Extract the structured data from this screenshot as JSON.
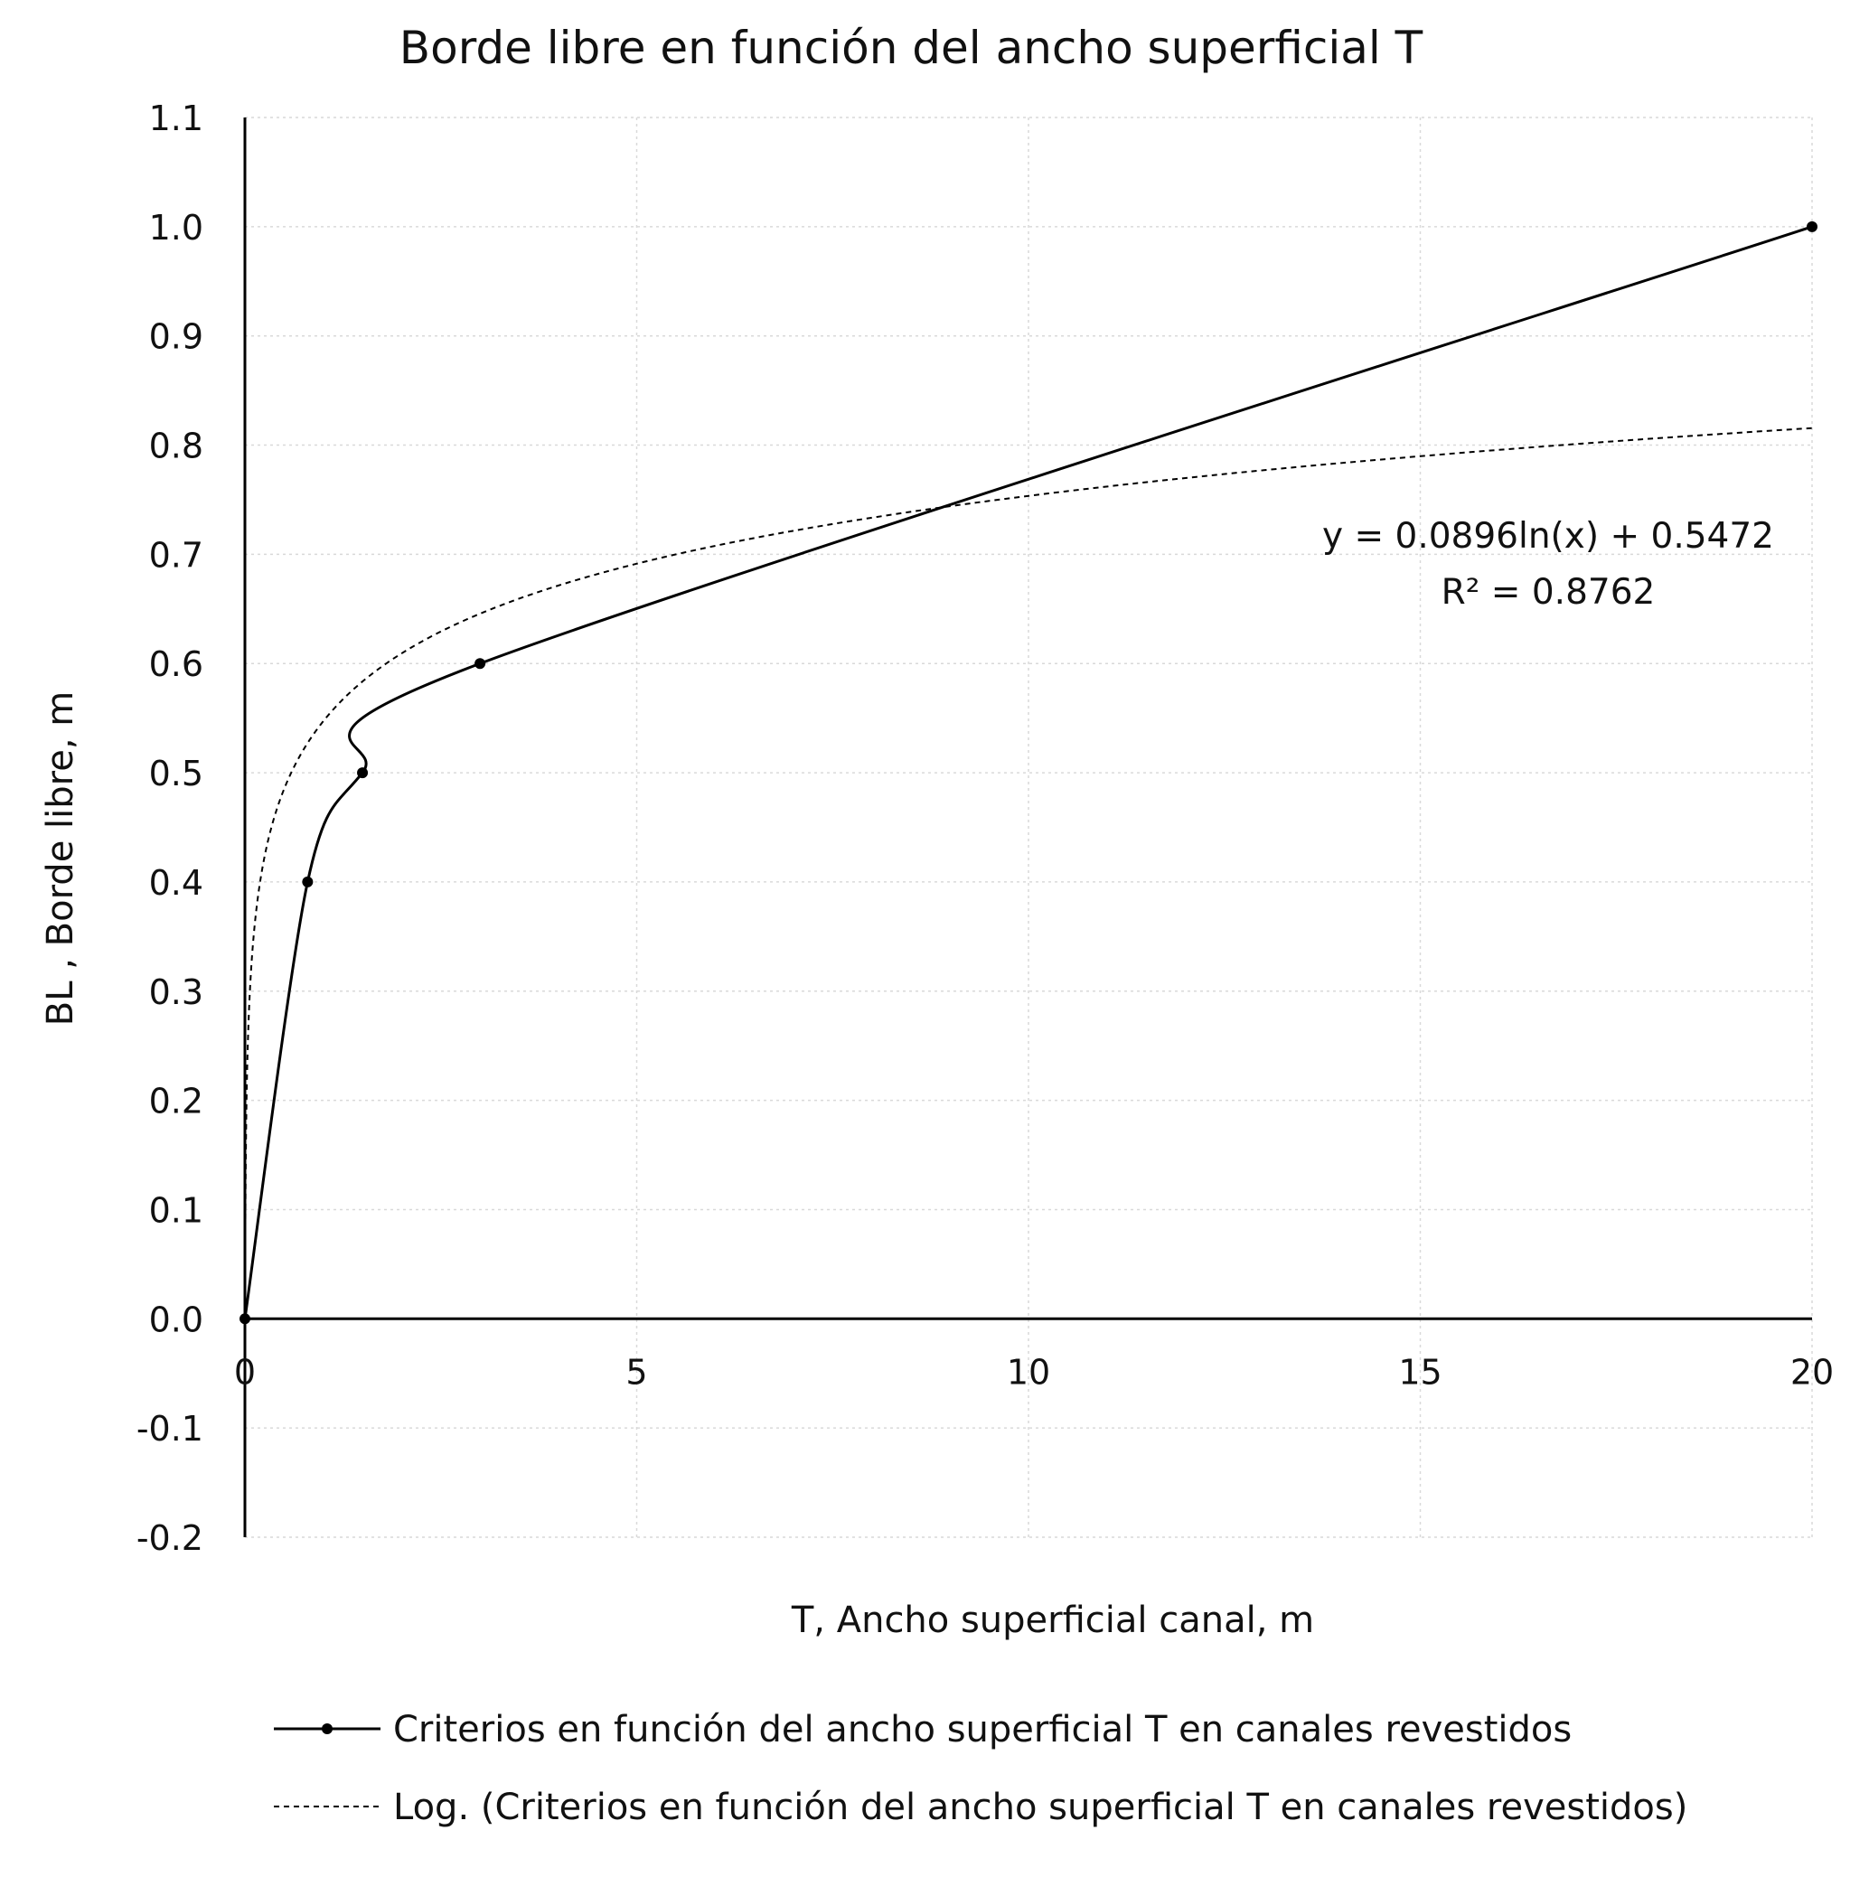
{
  "chart_data": {
    "type": "scatter",
    "title": "Borde libre en función del ancho superficial T",
    "xlabel": "T, Ancho superficial canal, m",
    "ylabel": "BL , Borde libre, m",
    "xlim": [
      0,
      20
    ],
    "ylim": [
      -0.2,
      1.1
    ],
    "x_ticks": [
      "0",
      "5",
      "10",
      "15",
      "20"
    ],
    "x_tick_values": [
      0,
      5,
      10,
      15,
      20
    ],
    "y_ticks": [
      "1.1",
      "1.0",
      "0.9",
      "0.8",
      "0.7",
      "0.6",
      "0.5",
      "0.4",
      "0.3",
      "0.2",
      "0.1",
      "0.0",
      "-0.1",
      "-0.2"
    ],
    "y_tick_values": [
      1.1,
      1.0,
      0.9,
      0.8,
      0.7,
      0.6,
      0.5,
      0.4,
      0.3,
      0.2,
      0.1,
      0.0,
      -0.1,
      -0.2
    ],
    "grid": true,
    "legend_position": "bottom",
    "series": [
      {
        "name": "Criterios en función del ancho superficial T en canales revestidos",
        "style": "smoothed line with markers",
        "color": "#000000",
        "x": [
          0,
          0.8,
          1.5,
          3,
          20
        ],
        "y": [
          0.0,
          0.4,
          0.5,
          0.6,
          1.0
        ]
      },
      {
        "name": "Log. (Criterios en función del ancho superficial T en canales revestidos)",
        "style": "dashed logarithmic trendline",
        "color": "#000000",
        "a": 0.0896,
        "b": 0.5472
      }
    ],
    "annotations": {
      "equation": "y = 0.0896ln(x) + 0.5472",
      "r2": "R² = 0.8762"
    }
  }
}
